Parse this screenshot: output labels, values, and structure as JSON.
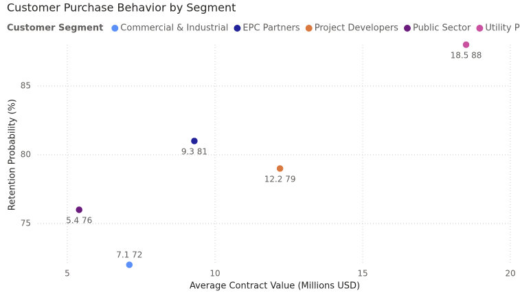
{
  "chart_data": {
    "type": "scatter",
    "title": "Customer Purchase Behavior by Segment",
    "legend_title": "Customer Segment",
    "x_label": "Average Contract Value (Millions USD)",
    "y_label": "Retention Probability (%)",
    "xlim": [
      4,
      20
    ],
    "xticks": [
      5,
      10,
      15,
      20
    ],
    "ylim": [
      72,
      88
    ],
    "yticks": [
      75,
      80,
      85
    ],
    "grid": true,
    "series": [
      {
        "name": "Commercial & Industrial",
        "color": "#5b8ff9",
        "x": [
          7.1
        ],
        "values": [
          72
        ],
        "value_labels": [
          "7.1 72"
        ]
      },
      {
        "name": "EPC Partners",
        "color": "#22229a",
        "x": [
          9.3
        ],
        "values": [
          81
        ],
        "value_labels": [
          "9.3 81"
        ]
      },
      {
        "name": "Project Developers",
        "color": "#d9783f",
        "x": [
          12.2
        ],
        "values": [
          79
        ],
        "value_labels": [
          "12.2 79"
        ]
      },
      {
        "name": "Public Sector",
        "color": "#6b1a7d",
        "x": [
          5.4
        ],
        "values": [
          76
        ],
        "value_labels": [
          "5.4 76"
        ]
      },
      {
        "name": "Utility Providers",
        "color": "#c9519f",
        "x": [
          18.5
        ],
        "values": [
          88
        ],
        "value_labels": [
          "18.5 88"
        ]
      }
    ]
  }
}
